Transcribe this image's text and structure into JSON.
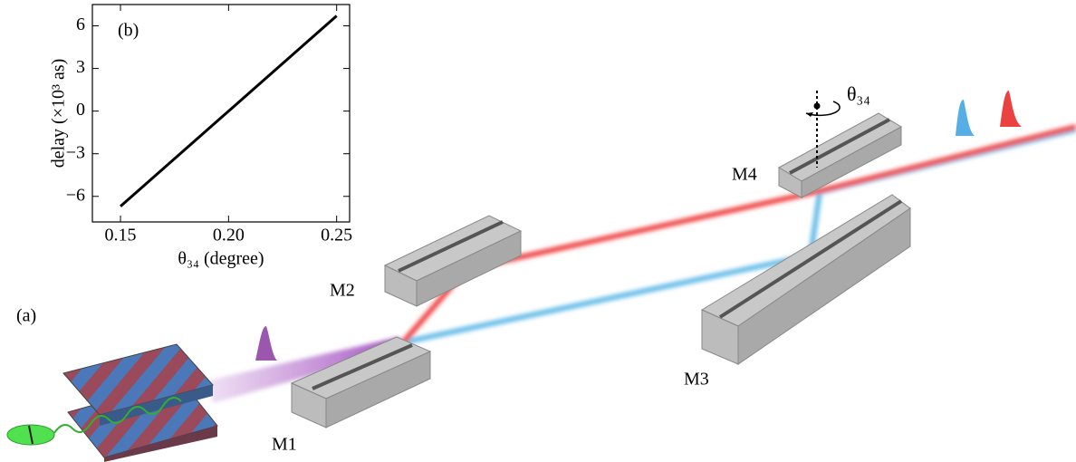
{
  "chart_data": {
    "type": "line",
    "panel_label": "(b)",
    "x_label": "θ₃₄ (degree)",
    "y_label": "delay (×10³ as)",
    "x": [
      0.15,
      0.25
    ],
    "series": [
      {
        "color": "#000000",
        "values": [
          -6.7,
          6.7
        ]
      }
    ],
    "xlim": [
      0.137,
      0.256
    ],
    "ylim": [
      -7.8,
      7.5
    ],
    "xticks": [
      0.15,
      {
        "value": 0.2,
        "label": "0.20"
      },
      0.25
    ],
    "yticks": [
      {
        "value": -6,
        "label": "−6"
      },
      {
        "value": -3,
        "label": "−3"
      },
      0,
      3,
      6
    ]
  },
  "diagram": {
    "panel_label": "(a)",
    "mirrors": [
      "M1",
      "M2",
      "M3",
      "M4"
    ],
    "angle_label": "θ₃₄"
  }
}
